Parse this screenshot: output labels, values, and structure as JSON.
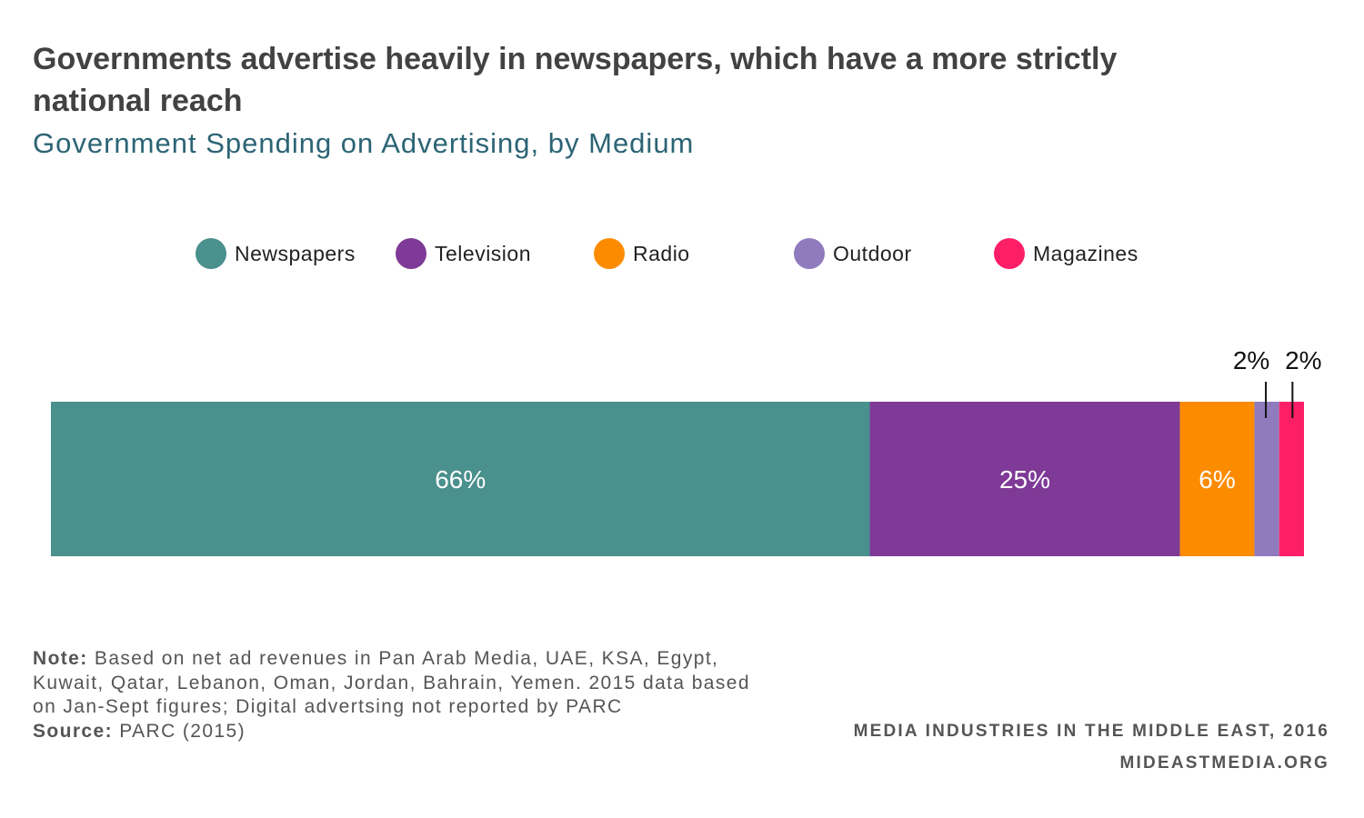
{
  "header": {
    "title": "Governments advertise heavily in newspapers, which have a more strictly national reach",
    "subtitle": "Government Spending on Advertising, by Medium"
  },
  "chart_data": {
    "type": "bar",
    "orientation": "horizontal",
    "stacked": true,
    "unit": "%",
    "categories": [
      ""
    ],
    "series": [
      {
        "name": "Newspapers",
        "values": [
          66
        ],
        "label": "66%",
        "color": "#4a908d"
      },
      {
        "name": "Television",
        "values": [
          25
        ],
        "label": "25%",
        "color": "#7e3a96"
      },
      {
        "name": "Radio",
        "values": [
          6
        ],
        "label": "6%",
        "color": "#fd8b00"
      },
      {
        "name": "Outdoor",
        "values": [
          2
        ],
        "label": "2%",
        "color": "#8f7bbd"
      },
      {
        "name": "Magazines",
        "values": [
          2
        ],
        "label": "2%",
        "color": "#fc1f67"
      }
    ],
    "xlim": [
      0,
      101
    ],
    "grid": false,
    "legend": "top-center"
  },
  "footer": {
    "note_label": "Note:",
    "note_text": "Based on net ad revenues in Pan Arab Media, UAE, KSA, Egypt, Kuwait, Qatar, Lebanon, Oman, Jordan, Bahrain, Yemen. 2015 data based on Jan-Sept figures; Digital advertsing not reported by PARC",
    "source_label": "Source:",
    "source_text": "PARC (2015)",
    "credit_line1": "MEDIA INDUSTRIES IN THE MIDDLE EAST, 2016",
    "credit_line2": "MIDEASTMEDIA.ORG"
  }
}
